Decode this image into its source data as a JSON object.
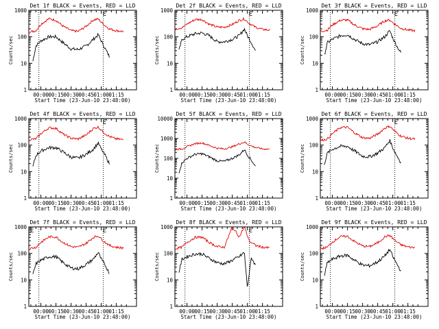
{
  "figure": {
    "ylabel": "Counts/sec",
    "xlabel": "Start Time (23-Jun-10 23:48:00)",
    "colors": {
      "events": "#000000",
      "lld": "#e00000",
      "axes": "#000000"
    }
  },
  "chart_data": [
    {
      "type": "line",
      "title": "Det 1f BLACK = Events, RED = LLD",
      "xlabel": "Start Time (23-Jun-10 23:48:00)",
      "ylabel": "Counts/sec",
      "yscale": "log",
      "ylim": [
        1,
        1000
      ],
      "xtick_labels": [
        "00:00",
        "00:15",
        "00:30",
        "00:45",
        "01:00",
        "01:15"
      ],
      "ytick_labels": [
        "1",
        "10",
        "100",
        "1000"
      ],
      "markers": [
        {
          "label": "E",
          "x": "01:02"
        }
      ],
      "vlines": [
        "23:58",
        "01:02"
      ],
      "series": [
        {
          "name": "Events",
          "color": "#000000",
          "x": [
            "23:52",
            "23:55",
            "00:00",
            "00:08",
            "00:15",
            "00:22",
            "00:30",
            "00:37",
            "00:45",
            "00:52",
            "00:57",
            "01:00",
            "01:04",
            "01:08"
          ],
          "values": [
            12,
            45,
            70,
            100,
            100,
            60,
            35,
            33,
            45,
            80,
            120,
            70,
            35,
            18
          ]
        },
        {
          "name": "LLD",
          "color": "#e00000",
          "x": [
            "23:48",
            "23:55",
            "00:00",
            "00:08",
            "00:15",
            "00:22",
            "00:30",
            "00:37",
            "00:45",
            "00:52",
            "00:57",
            "01:02",
            "01:08",
            "01:15",
            "01:22"
          ],
          "values": [
            150,
            170,
            300,
            480,
            420,
            250,
            170,
            160,
            250,
            430,
            470,
            300,
            200,
            170,
            160
          ]
        }
      ]
    },
    {
      "type": "line",
      "title": "Det 2f BLACK = Events, RED = LLD",
      "xlabel": "Start Time (23-Jun-10 23:48:00)",
      "ylabel": "Counts/sec",
      "yscale": "log",
      "ylim": [
        1,
        1000
      ],
      "xtick_labels": [
        "00:00",
        "00:15",
        "00:30",
        "00:45",
        "01:00",
        "01:15"
      ],
      "ytick_labels": [
        "1",
        "10",
        "100",
        "1000"
      ],
      "markers": [
        {
          "label": "E",
          "x": "01:02"
        }
      ],
      "vlines": [
        "23:58",
        "01:02"
      ],
      "series": [
        {
          "name": "Events",
          "color": "#000000",
          "x": [
            "23:52",
            "23:55",
            "00:00",
            "00:08",
            "00:15",
            "00:22",
            "00:30",
            "00:37",
            "00:45",
            "00:52",
            "00:57",
            "01:00",
            "01:04",
            "01:08"
          ],
          "values": [
            30,
            80,
            100,
            130,
            140,
            110,
            65,
            65,
            80,
            110,
            200,
            110,
            60,
            30
          ]
        },
        {
          "name": "LLD",
          "color": "#e00000",
          "x": [
            "23:48",
            "23:55",
            "00:00",
            "00:08",
            "00:15",
            "00:22",
            "00:30",
            "00:37",
            "00:45",
            "00:52",
            "00:57",
            "01:02",
            "01:08",
            "01:15",
            "01:22"
          ],
          "values": [
            200,
            220,
            300,
            450,
            450,
            300,
            230,
            230,
            290,
            420,
            470,
            320,
            230,
            190,
            180
          ]
        }
      ]
    },
    {
      "type": "line",
      "title": "Det 3f BLACK = Events, RED = LLD",
      "xlabel": "Start Time (23-Jun-10 23:48:00)",
      "ylabel": "Counts/sec",
      "yscale": "log",
      "ylim": [
        1,
        1000
      ],
      "xtick_labels": [
        "00:00",
        "00:15",
        "00:30",
        "00:45",
        "01:00",
        "01:15"
      ],
      "ytick_labels": [
        "1",
        "10",
        "100",
        "1000"
      ],
      "markers": [
        {
          "label": "E",
          "x": "01:02"
        }
      ],
      "vlines": [
        "23:58",
        "01:02"
      ],
      "series": [
        {
          "name": "Events",
          "color": "#000000",
          "x": [
            "23:52",
            "23:55",
            "00:00",
            "00:08",
            "00:15",
            "00:22",
            "00:30",
            "00:37",
            "00:45",
            "00:52",
            "00:57",
            "01:00",
            "01:04",
            "01:08"
          ],
          "values": [
            20,
            60,
            80,
            110,
            120,
            80,
            55,
            50,
            65,
            100,
            170,
            90,
            45,
            25
          ]
        },
        {
          "name": "LLD",
          "color": "#e00000",
          "x": [
            "23:48",
            "23:55",
            "00:00",
            "00:08",
            "00:15",
            "00:22",
            "00:30",
            "00:37",
            "00:45",
            "00:52",
            "00:57",
            "01:02",
            "01:08",
            "01:15",
            "01:22"
          ],
          "values": [
            160,
            180,
            280,
            420,
            430,
            280,
            200,
            190,
            260,
            400,
            430,
            300,
            210,
            180,
            170
          ]
        }
      ]
    },
    {
      "type": "line",
      "title": "Det 4f BLACK = Events, RED = LLD",
      "xlabel": "Start Time (23-Jun-10 23:48:00)",
      "ylabel": "Counts/sec",
      "yscale": "log",
      "ylim": [
        1,
        1000
      ],
      "xtick_labels": [
        "00:00",
        "00:15",
        "00:30",
        "00:45",
        "01:00",
        "01:15"
      ],
      "ytick_labels": [
        "1",
        "10",
        "100",
        "1000"
      ],
      "markers": [
        {
          "label": "E",
          "x": "01:02"
        }
      ],
      "vlines": [
        "23:58",
        "01:02"
      ],
      "series": [
        {
          "name": "Events",
          "color": "#000000",
          "x": [
            "23:52",
            "23:55",
            "00:00",
            "00:08",
            "00:15",
            "00:22",
            "00:30",
            "00:37",
            "00:45",
            "00:52",
            "00:57",
            "01:00",
            "01:04",
            "01:08"
          ],
          "values": [
            15,
            40,
            60,
            80,
            80,
            55,
            35,
            32,
            45,
            70,
            120,
            70,
            40,
            20
          ]
        },
        {
          "name": "LLD",
          "color": "#e00000",
          "x": [
            "23:48",
            "23:55",
            "00:00",
            "00:08",
            "00:15",
            "00:22",
            "00:30",
            "00:37",
            "00:45",
            "00:52",
            "00:57",
            "01:02",
            "01:08",
            "01:15",
            "01:22"
          ],
          "values": [
            160,
            170,
            270,
            450,
            430,
            260,
            180,
            170,
            240,
            420,
            480,
            310,
            210,
            170,
            160
          ]
        }
      ]
    },
    {
      "type": "line",
      "title": "Det 5f BLACK = Events, RED = LLD",
      "xlabel": "Start Time (23-Jun-10 23:48:00)",
      "ylabel": "Counts/sec",
      "yscale": "log",
      "ylim": [
        1,
        10000
      ],
      "xtick_labels": [
        "00:00",
        "00:15",
        "00:30",
        "00:45",
        "01:00",
        "01:15"
      ],
      "ytick_labels": [
        "1",
        "10",
        "100",
        "1000",
        "10000"
      ],
      "markers": [],
      "vlines": [
        "23:58",
        "01:02"
      ],
      "series": [
        {
          "name": "Events",
          "color": "#000000",
          "x": [
            "23:52",
            "23:55",
            "00:00",
            "00:08",
            "00:15",
            "00:22",
            "00:30",
            "00:37",
            "00:45",
            "00:52",
            "00:57",
            "01:00",
            "01:04",
            "01:08"
          ],
          "values": [
            20,
            60,
            100,
            160,
            170,
            120,
            75,
            70,
            100,
            150,
            280,
            150,
            80,
            40
          ]
        },
        {
          "name": "LLD",
          "color": "#e00000",
          "x": [
            "23:48",
            "23:55",
            "00:00",
            "00:08",
            "00:15",
            "00:22",
            "00:30",
            "00:37",
            "00:45",
            "00:52",
            "00:57",
            "01:02",
            "01:08",
            "01:15",
            "01:22"
          ],
          "values": [
            280,
            300,
            380,
            550,
            600,
            450,
            320,
            300,
            380,
            540,
            650,
            460,
            350,
            300,
            290
          ]
        }
      ]
    },
    {
      "type": "line",
      "title": "Det 6f BLACK = Events, RED = LLD",
      "xlabel": "Start Time (23-Jun-10 23:48:00)",
      "ylabel": "Counts/sec",
      "yscale": "log",
      "ylim": [
        1,
        1000
      ],
      "xtick_labels": [
        "00:00",
        "00:15",
        "00:30",
        "00:45",
        "01:00",
        "01:15"
      ],
      "ytick_labels": [
        "1",
        "10",
        "100",
        "1000"
      ],
      "markers": [
        {
          "label": "E",
          "x": "01:02"
        }
      ],
      "vlines": [
        "23:58",
        "01:02"
      ],
      "series": [
        {
          "name": "Events",
          "color": "#000000",
          "x": [
            "23:52",
            "23:55",
            "00:00",
            "00:08",
            "00:15",
            "00:22",
            "00:30",
            "00:37",
            "00:45",
            "00:52",
            "00:57",
            "01:00",
            "01:04",
            "01:08"
          ],
          "values": [
            20,
            50,
            70,
            90,
            90,
            60,
            38,
            36,
            50,
            80,
            150,
            80,
            40,
            22
          ]
        },
        {
          "name": "LLD",
          "color": "#e00000",
          "x": [
            "23:48",
            "23:55",
            "00:00",
            "00:08",
            "00:15",
            "00:22",
            "00:30",
            "00:37",
            "00:45",
            "00:52",
            "00:57",
            "01:02",
            "01:08",
            "01:15",
            "01:22"
          ],
          "values": [
            150,
            170,
            270,
            460,
            470,
            290,
            190,
            180,
            260,
            440,
            520,
            330,
            220,
            180,
            170
          ]
        }
      ]
    },
    {
      "type": "line",
      "title": "Det 7f BLACK = Events, RED = LLD",
      "xlabel": "Start Time (23-Jun-10 23:48:00)",
      "ylabel": "Counts/sec",
      "yscale": "log",
      "ylim": [
        1,
        1000
      ],
      "xtick_labels": [
        "00:00",
        "00:15",
        "00:30",
        "00:45",
        "01:00",
        "01:15"
      ],
      "ytick_labels": [
        "1",
        "10",
        "100",
        "1000"
      ],
      "markers": [
        {
          "label": "E",
          "x": "23:50"
        },
        {
          "label": "E",
          "x": "01:02"
        }
      ],
      "vlines": [
        "23:58",
        "01:02"
      ],
      "series": [
        {
          "name": "Events",
          "color": "#000000",
          "x": [
            "23:52",
            "23:55",
            "00:00",
            "00:08",
            "00:15",
            "00:22",
            "00:30",
            "00:37",
            "00:45",
            "00:52",
            "00:57",
            "01:00",
            "01:04",
            "01:08"
          ],
          "values": [
            15,
            40,
            55,
            75,
            75,
            45,
            28,
            26,
            38,
            60,
            110,
            60,
            35,
            18
          ]
        },
        {
          "name": "LLD",
          "color": "#e00000",
          "x": [
            "23:48",
            "23:55",
            "00:00",
            "00:08",
            "00:15",
            "00:22",
            "00:30",
            "00:37",
            "00:45",
            "00:52",
            "00:57",
            "01:02",
            "01:08",
            "01:15",
            "01:22"
          ],
          "values": [
            150,
            170,
            260,
            420,
            420,
            260,
            180,
            170,
            240,
            400,
            460,
            300,
            200,
            170,
            160
          ]
        }
      ]
    },
    {
      "type": "line",
      "title": "Det 8f BLACK = Events, RED = LLD",
      "xlabel": "Start Time (23-Jun-10 23:48:00)",
      "ylabel": "Counts/sec",
      "yscale": "log",
      "ylim": [
        1,
        1000
      ],
      "xtick_labels": [
        "00:00",
        "00:15",
        "00:30",
        "00:45",
        "01:00",
        "01:15"
      ],
      "ytick_labels": [
        "1",
        "10",
        "100",
        "1000"
      ],
      "markers": [
        {
          "label": "E",
          "x": "01:02"
        }
      ],
      "vlines": [
        "23:58",
        "01:02"
      ],
      "series": [
        {
          "name": "Events",
          "color": "#000000",
          "x": [
            "23:52",
            "23:55",
            "00:00",
            "00:08",
            "00:15",
            "00:22",
            "00:30",
            "00:37",
            "00:45",
            "00:52",
            "00:57",
            "01:00",
            "01:04",
            "01:08"
          ],
          "values": [
            20,
            60,
            75,
            95,
            95,
            65,
            45,
            40,
            55,
            75,
            110,
            5,
            70,
            35
          ]
        },
        {
          "name": "LLD",
          "color": "#e00000",
          "x": [
            "23:48",
            "23:55",
            "00:00",
            "00:08",
            "00:15",
            "00:22",
            "00:30",
            "00:37",
            "00:45",
            "00:52",
            "00:57",
            "01:02",
            "01:08",
            "01:15",
            "01:22"
          ],
          "values": [
            150,
            170,
            260,
            400,
            410,
            260,
            180,
            170,
            1000,
            420,
            1000,
            290,
            200,
            170,
            160
          ]
        }
      ]
    },
    {
      "type": "line",
      "title": "Det 9f BLACK = Events, RED = LLD",
      "xlabel": "Start Time (23-Jun-10 23:48:00)",
      "ylabel": "Counts/sec",
      "yscale": "log",
      "ylim": [
        1,
        1000
      ],
      "xtick_labels": [
        "00:00",
        "00:15",
        "00:30",
        "00:45",
        "01:00",
        "01:15"
      ],
      "ytick_labels": [
        "1",
        "10",
        "100",
        "1000"
      ],
      "markers": [],
      "vlines": [
        "23:58",
        "01:02"
      ],
      "series": [
        {
          "name": "Events",
          "color": "#000000",
          "x": [
            "23:52",
            "23:55",
            "00:00",
            "00:08",
            "00:15",
            "00:22",
            "00:30",
            "00:37",
            "00:45",
            "00:52",
            "00:57",
            "01:00",
            "01:04",
            "01:08"
          ],
          "values": [
            15,
            45,
            60,
            80,
            85,
            55,
            36,
            34,
            48,
            80,
            140,
            75,
            40,
            22
          ]
        },
        {
          "name": "LLD",
          "color": "#e00000",
          "x": [
            "23:48",
            "23:55",
            "00:00",
            "00:08",
            "00:15",
            "00:22",
            "00:30",
            "00:37",
            "00:45",
            "00:52",
            "00:57",
            "01:02",
            "01:08",
            "01:15",
            "01:22"
          ],
          "values": [
            150,
            170,
            270,
            430,
            440,
            280,
            190,
            180,
            250,
            420,
            480,
            310,
            210,
            175,
            165
          ]
        }
      ]
    }
  ]
}
